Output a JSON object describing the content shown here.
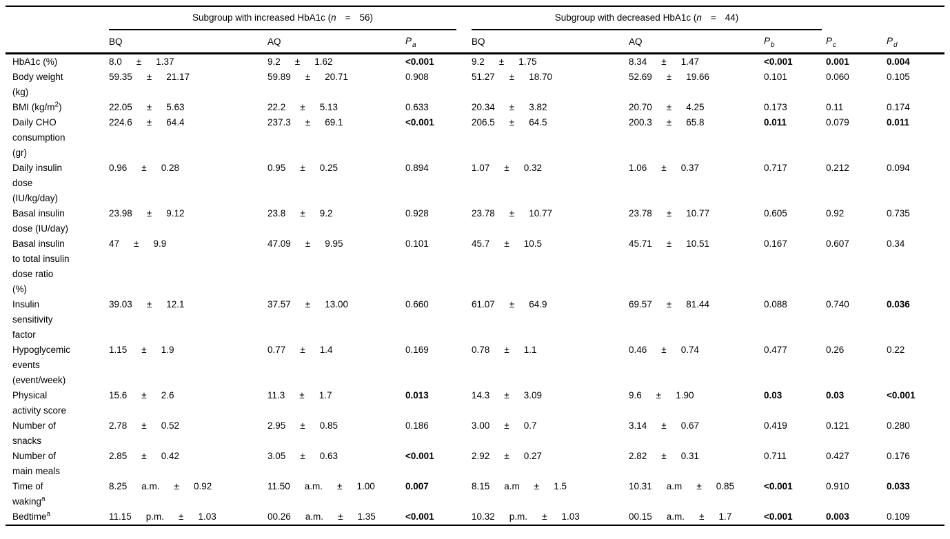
{
  "pm_sign": "±",
  "header": {
    "group_increased": {
      "pre": "Subgroup with increased HbA1c (",
      "n": "n",
      "eq": "=",
      "count": "56)"
    },
    "group_decreased": {
      "pre": "Subgroup with decreased HbA1c (",
      "n": "n",
      "eq": "=",
      "count": "44)"
    },
    "col_headers": {
      "bq1": "BQ",
      "aq1": "AQ",
      "pa": {
        "letter": "P",
        "sub": "a"
      },
      "bq2": "BQ",
      "aq2": "AQ",
      "pb": {
        "letter": "P",
        "sub": "b"
      },
      "pc": {
        "letter": "P",
        "sub": "c"
      },
      "pd": {
        "letter": "P",
        "sub": "d"
      }
    }
  },
  "rows": [
    {
      "label_lines": [
        "HbA1c (%)"
      ],
      "bq1": {
        "m": "8.0",
        "s": "1.37"
      },
      "aq1": {
        "m": "9.2",
        "s": "1.62"
      },
      "pa": {
        "v": "<0.001",
        "b": true
      },
      "bq2": {
        "m": "9.2",
        "s": "1.75"
      },
      "aq2": {
        "m": "8.34",
        "s": "1.47"
      },
      "pb": {
        "v": "<0.001",
        "b": true
      },
      "pc": {
        "v": "0.001",
        "b": true
      },
      "pd": {
        "v": "0.004",
        "b": true
      }
    },
    {
      "label_lines": [
        "Body weight",
        "(kg)"
      ],
      "bq1": {
        "m": "59.35",
        "s": "21.17"
      },
      "aq1": {
        "m": "59.89",
        "s": "20.71"
      },
      "pa": {
        "v": "0.908",
        "b": false
      },
      "bq2": {
        "m": "51.27",
        "s": "18.70"
      },
      "aq2": {
        "m": "52.69",
        "s": "19.66"
      },
      "pb": {
        "v": "0.101",
        "b": false
      },
      "pc": {
        "v": "0.060",
        "b": false
      },
      "pd": {
        "v": "0.105",
        "b": false
      }
    },
    {
      "label_lines": [
        {
          "pre": "BMI (kg/m",
          "sup": "2",
          "post": ")"
        }
      ],
      "bq1": {
        "m": "22.05",
        "s": "5.63"
      },
      "aq1": {
        "m": "22.2",
        "s": "5.13"
      },
      "pa": {
        "v": "0.633",
        "b": false
      },
      "bq2": {
        "m": "20.34",
        "s": "3.82"
      },
      "aq2": {
        "m": "20.70",
        "s": "4.25"
      },
      "pb": {
        "v": "0.173",
        "b": false
      },
      "pc": {
        "v": "0.11",
        "b": false
      },
      "pd": {
        "v": "0.174",
        "b": false
      }
    },
    {
      "label_lines": [
        "Daily CHO",
        "consumption",
        "(gr)"
      ],
      "bq1": {
        "m": "224.6",
        "s": "64.4"
      },
      "aq1": {
        "m": "237.3",
        "s": "69.1"
      },
      "pa": {
        "v": "<0.001",
        "b": true
      },
      "bq2": {
        "m": "206.5",
        "s": "64.5"
      },
      "aq2": {
        "m": "200.3",
        "s": "65.8"
      },
      "pb": {
        "v": "0.011",
        "b": true
      },
      "pc": {
        "v": "0.079",
        "b": false
      },
      "pd": {
        "v": "0.011",
        "b": true
      }
    },
    {
      "label_lines": [
        "Daily insulin",
        "dose",
        "(IU/kg/day)"
      ],
      "bq1": {
        "m": "0.96",
        "s": "0.28"
      },
      "aq1": {
        "m": "0.95",
        "s": "0.25"
      },
      "pa": {
        "v": "0.894",
        "b": false
      },
      "bq2": {
        "m": "1.07",
        "s": "0.32"
      },
      "aq2": {
        "m": "1.06",
        "s": "0.37"
      },
      "pb": {
        "v": "0.717",
        "b": false
      },
      "pc": {
        "v": "0.212",
        "b": false
      },
      "pd": {
        "v": "0.094",
        "b": false
      }
    },
    {
      "label_lines": [
        "Basal insulin",
        "dose (IU/day)"
      ],
      "bq1": {
        "m": "23.98",
        "s": "9.12"
      },
      "aq1": {
        "m": "23.8",
        "s": "9.2"
      },
      "pa": {
        "v": "0.928",
        "b": false
      },
      "bq2": {
        "m": "23.78",
        "s": "10.77"
      },
      "aq2": {
        "m": "23.78",
        "s": "10.77"
      },
      "pb": {
        "v": "0.605",
        "b": false
      },
      "pc": {
        "v": "0.92",
        "b": false
      },
      "pd": {
        "v": "0.735",
        "b": false
      }
    },
    {
      "label_lines": [
        "Basal insulin",
        "to total insulin",
        "dose ratio",
        "(%)"
      ],
      "bq1": {
        "m": "47",
        "s": "9.9"
      },
      "aq1": {
        "m": "47.09",
        "s": "9.95"
      },
      "pa": {
        "v": "0.101",
        "b": false
      },
      "bq2": {
        "m": "45.7",
        "s": "10.5"
      },
      "aq2": {
        "m": "45.71",
        "s": "10.51"
      },
      "pb": {
        "v": "0.167",
        "b": false
      },
      "pc": {
        "v": "0.607",
        "b": false
      },
      "pd": {
        "v": "0.34",
        "b": false
      }
    },
    {
      "label_lines": [
        "Insulin",
        "sensitivity",
        "factor"
      ],
      "bq1": {
        "m": "39.03",
        "s": "12.1"
      },
      "aq1": {
        "m": "37.57",
        "s": "13.00"
      },
      "pa": {
        "v": "0.660",
        "b": false
      },
      "bq2": {
        "m": "61.07",
        "s": "64.9"
      },
      "aq2": {
        "m": "69.57",
        "s": "81.44"
      },
      "pb": {
        "v": "0.088",
        "b": false
      },
      "pc": {
        "v": "0.740",
        "b": false
      },
      "pd": {
        "v": "0.036",
        "b": true
      }
    },
    {
      "label_lines": [
        "Hypoglycemic",
        "events",
        "(event/week)"
      ],
      "bq1": {
        "m": "1.15",
        "s": "1.9"
      },
      "aq1": {
        "m": "0.77",
        "s": "1.4"
      },
      "pa": {
        "v": "0.169",
        "b": false
      },
      "bq2": {
        "m": "0.78",
        "s": "1.1"
      },
      "aq2": {
        "m": "0.46",
        "s": "0.74"
      },
      "pb": {
        "v": "0.477",
        "b": false
      },
      "pc": {
        "v": "0.26",
        "b": false
      },
      "pd": {
        "v": "0.22",
        "b": false
      }
    },
    {
      "label_lines": [
        "Physical",
        "activity score"
      ],
      "bq1": {
        "m": "15.6",
        "s": "2.6"
      },
      "aq1": {
        "m": "11.3",
        "s": "1.7"
      },
      "pa": {
        "v": "0.013",
        "b": true
      },
      "bq2": {
        "m": "14.3",
        "s": "3.09"
      },
      "aq2": {
        "m": "9.6",
        "s": "1.90"
      },
      "pb": {
        "v": "0.03",
        "b": true
      },
      "pc": {
        "v": "0.03",
        "b": true
      },
      "pd": {
        "v": "<0.001",
        "b": true
      }
    },
    {
      "label_lines": [
        "Number of",
        "snacks"
      ],
      "bq1": {
        "m": "2.78",
        "s": "0.52"
      },
      "aq1": {
        "m": "2.95",
        "s": "0.85"
      },
      "pa": {
        "v": "0.186",
        "b": false
      },
      "bq2": {
        "m": "3.00",
        "s": "0.7"
      },
      "aq2": {
        "m": "3.14",
        "s": "0.67"
      },
      "pb": {
        "v": "0.419",
        "b": false
      },
      "pc": {
        "v": "0.121",
        "b": false
      },
      "pd": {
        "v": "0.280",
        "b": false
      }
    },
    {
      "label_lines": [
        "Number of",
        "main meals"
      ],
      "bq1": {
        "m": "2.85",
        "s": "0.42"
      },
      "aq1": {
        "m": "3.05",
        "s": "0.63"
      },
      "pa": {
        "v": "<0.001",
        "b": true
      },
      "bq2": {
        "m": "2.92",
        "s": "0.27"
      },
      "aq2": {
        "m": "2.82",
        "s": "0.31"
      },
      "pb": {
        "v": "0.711",
        "b": false
      },
      "pc": {
        "v": "0.427",
        "b": false
      },
      "pd": {
        "v": "0.176",
        "b": false
      }
    },
    {
      "label_lines": [
        "Time of",
        {
          "pre": "waking",
          "sup": "a",
          "post": ""
        }
      ],
      "bq1": {
        "m": "8.25",
        "mer": "a.m.",
        "s": "0.92"
      },
      "aq1": {
        "m": "11.50",
        "mer": "a.m.",
        "s": "1.00"
      },
      "pa": {
        "v": "0.007",
        "b": true
      },
      "bq2": {
        "m": "8.15",
        "mer": "a.m",
        "s": "1.5"
      },
      "aq2": {
        "m": "10.31",
        "mer": "a.m",
        "s": "0.85"
      },
      "pb": {
        "v": "<0.001",
        "b": true
      },
      "pc": {
        "v": "0.910",
        "b": false
      },
      "pd": {
        "v": "0.033",
        "b": true
      }
    },
    {
      "label_lines": [
        {
          "pre": "Bedtime",
          "sup": "a",
          "post": ""
        }
      ],
      "bq1": {
        "m": "11.15",
        "mer": "p.m.",
        "s": "1.03"
      },
      "aq1": {
        "m": "00.26",
        "mer": "a.m.",
        "s": "1.35"
      },
      "pa": {
        "v": "<0.001",
        "b": true
      },
      "bq2": {
        "m": "10.32",
        "mer": "p.m.",
        "s": "1.03"
      },
      "aq2": {
        "m": "00.15",
        "mer": "a.m.",
        "s": "1.7"
      },
      "pb": {
        "v": "<0.001",
        "b": true
      },
      "pc": {
        "v": "0.003",
        "b": true
      },
      "pd": {
        "v": "0.109",
        "b": false
      }
    }
  ]
}
